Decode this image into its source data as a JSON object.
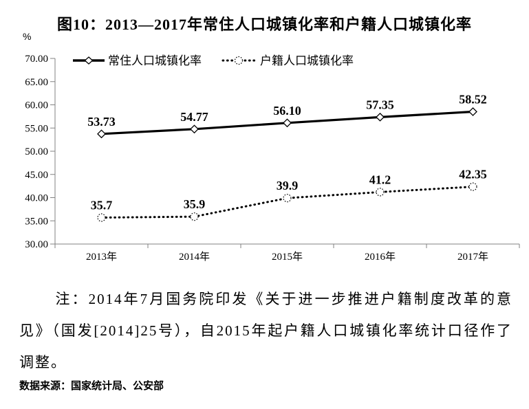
{
  "title": "图10：2013—2017年常住人口城镇化率和户籍人口城镇化率",
  "y_axis_unit": "%",
  "chart_data": {
    "type": "line",
    "title": "图10：2013—2017年常住人口城镇化率和户籍人口城镇化率",
    "categories": [
      "2013年",
      "2014年",
      "2015年",
      "2016年",
      "2017年"
    ],
    "series": [
      {
        "name": "常住人口城镇化率",
        "style": "solid",
        "marker": "diamond",
        "values": [
          53.73,
          54.77,
          56.1,
          57.35,
          58.52
        ],
        "labels": [
          "53.73",
          "54.77",
          "56.10",
          "57.35",
          "58.52"
        ]
      },
      {
        "name": "户籍人口城镇化率",
        "style": "dotted",
        "marker": "circle",
        "values": [
          35.7,
          35.9,
          39.9,
          41.2,
          42.35
        ],
        "labels": [
          "35.7",
          "35.9",
          "39.9",
          "41.2",
          "42.35"
        ]
      }
    ],
    "ylim": [
      30,
      70
    ],
    "ytick_labels": [
      "70.00",
      "65.00",
      "60.00",
      "55.00",
      "50.00",
      "45.00",
      "40.00",
      "35.00",
      "30.00"
    ],
    "ylabel": "%",
    "xlabel": "",
    "grid": false,
    "legend_position": "top-inside",
    "colors": {
      "line": "#000000",
      "axis": "#808080",
      "background": "#ffffff"
    }
  },
  "note": "注：2014年7月国务院印发《关于进一步推进户籍制度改革的意见》（国发[2014]25号），自2015年起户籍人口城镇化率统计口径作了调整。",
  "source": "数据来源：国家统计局、公安部"
}
